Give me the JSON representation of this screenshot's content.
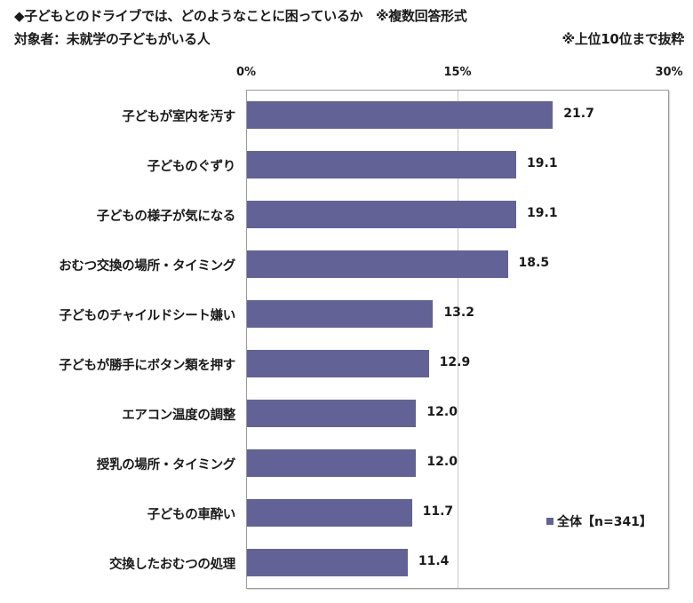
{
  "header": {
    "title": "◆子どもとのドライブでは、どのようなことに困っているか　※複数回答形式",
    "subtitle": "対象者：未就学の子どもがいる人",
    "note": "※上位10位まで抜粋"
  },
  "colors": {
    "bar": "#636296",
    "grid": "#c8c8c8",
    "border": "#9a9a9a"
  },
  "chart_data": {
    "type": "bar",
    "orientation": "horizontal",
    "title": "子どもとのドライブでは、どのようなことに困っているか",
    "subtitle": "対象者：未就学の子どもがいる人",
    "notes": [
      "※複数回答形式",
      "※上位10位まで抜粋"
    ],
    "xlabel": "",
    "ylabel": "",
    "xlim": [
      0,
      30
    ],
    "x_ticks": [
      "0%",
      "15%",
      "30%"
    ],
    "grid": true,
    "legend_position": "inside-right-bottom",
    "categories": [
      "子どもが室内を汚す",
      "子どものぐずり",
      "子どもの様子が気になる",
      "おむつ交換の場所・タイミング",
      "子どものチャイルドシート嫌い",
      "子どもが勝手にボタン類を押す",
      "エアコン温度の調整",
      "授乳の場所・タイミング",
      "子どもの車酔い",
      "交換したおむつの処理"
    ],
    "series": [
      {
        "name": "全体【n=341】",
        "values": [
          21.7,
          19.1,
          19.1,
          18.5,
          13.2,
          12.9,
          12.0,
          12.0,
          11.7,
          11.4
        ]
      }
    ],
    "value_labels": [
      "21.7",
      "19.1",
      "19.1",
      "18.5",
      "13.2",
      "12.9",
      "12.0",
      "12.0",
      "11.7",
      "11.4"
    ]
  }
}
